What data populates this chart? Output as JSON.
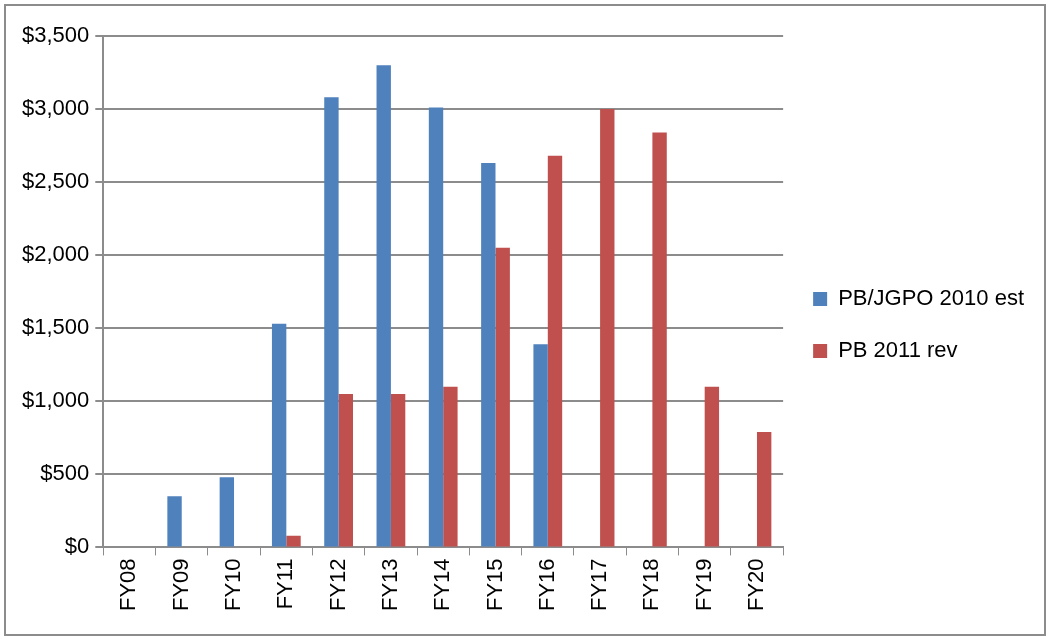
{
  "chart_data": {
    "type": "bar",
    "categories": [
      "FY08",
      "FY09",
      "FY10",
      "FY11",
      "FY12",
      "FY13",
      "FY14",
      "FY15",
      "FY16",
      "FY17",
      "FY18",
      "FY19",
      "FY20"
    ],
    "series": [
      {
        "name": "PB/JGPO 2010 est",
        "color": "#4f81bd",
        "values": [
          null,
          350,
          480,
          1530,
          3080,
          3300,
          3010,
          2630,
          1390,
          null,
          null,
          null,
          null
        ]
      },
      {
        "name": "PB 2011 rev",
        "color": "#c0504d",
        "values": [
          null,
          null,
          null,
          80,
          1050,
          1050,
          1100,
          2050,
          2680,
          3000,
          2840,
          1100,
          790
        ]
      }
    ],
    "ylim": [
      0,
      3500
    ],
    "yticks": [
      {
        "value": 0,
        "label": "$0"
      },
      {
        "value": 500,
        "label": "$500"
      },
      {
        "value": 1000,
        "label": "$1,000"
      },
      {
        "value": 1500,
        "label": "$1,500"
      },
      {
        "value": 2000,
        "label": "$2,000"
      },
      {
        "value": 2500,
        "label": "$2,500"
      },
      {
        "value": 3000,
        "label": "$3,000"
      },
      {
        "value": 3500,
        "label": "$3,500"
      }
    ],
    "grid": "y",
    "legend": "right"
  }
}
